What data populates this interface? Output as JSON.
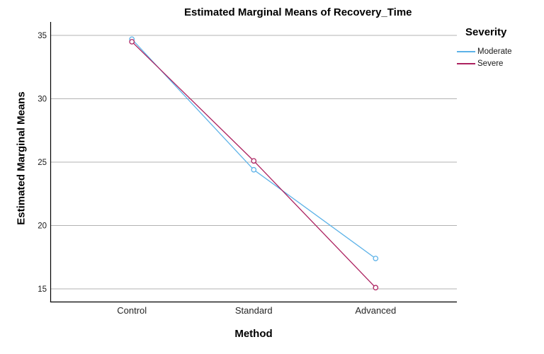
{
  "figure": {
    "title": "Estimated Marginal Means of Recovery_Time",
    "legend": {
      "title": "Severity",
      "entries": [
        {
          "label": "Moderate",
          "color": "#5CB2E8"
        },
        {
          "label": "Severe",
          "color": "#AC2260"
        }
      ]
    }
  },
  "chart_data": {
    "type": "line",
    "title": "Estimated Marginal Means of Recovery_Time",
    "xlabel": "Method",
    "ylabel": "Estimated Marginal Means",
    "categories": [
      "Control",
      "Standard",
      "Advanced"
    ],
    "series": [
      {
        "name": "Moderate",
        "color": "#5CB2E8",
        "values": [
          34.7,
          24.4,
          17.4
        ]
      },
      {
        "name": "Severe",
        "color": "#AC2260",
        "values": [
          34.5,
          25.1,
          15.1
        ]
      }
    ],
    "yticks": [
      15,
      20,
      25,
      30,
      35
    ],
    "ylim": [
      13.97,
      36.06
    ],
    "grid": "horizontal-only",
    "gridline_color": "#b3b3b3",
    "axis_color": "#000000",
    "marker": "open-circle",
    "legend_title": "Severity",
    "legend_position": "right"
  }
}
